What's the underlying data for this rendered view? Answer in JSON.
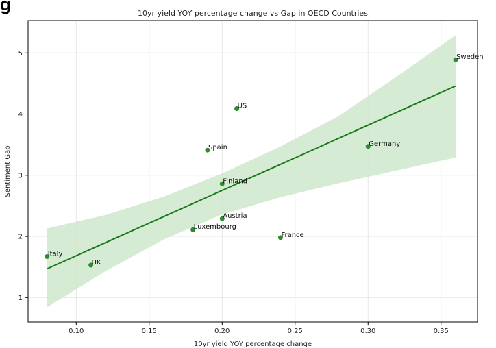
{
  "page": {
    "title_fragment": "g"
  },
  "chart_data": {
    "type": "scatter",
    "title": "10yr yield YOY percentage change vs Gap in OECD Countries",
    "xlabel": "10yr yield YOY percentage change",
    "ylabel": "Sentiment Gap",
    "xlim": [
      0.067,
      0.375
    ],
    "ylim": [
      0.6,
      5.53
    ],
    "xticks": [
      "0.10",
      "0.15",
      "0.20",
      "0.25",
      "0.30",
      "0.35"
    ],
    "yticks": [
      "1",
      "2",
      "3",
      "4",
      "5"
    ],
    "grid": true,
    "points": [
      {
        "label": "Italy",
        "x": 0.08,
        "y": 1.67
      },
      {
        "label": "UK",
        "x": 0.11,
        "y": 1.53
      },
      {
        "label": "Luxembourg",
        "x": 0.18,
        "y": 2.11
      },
      {
        "label": "Spain",
        "x": 0.19,
        "y": 3.41
      },
      {
        "label": "Finland",
        "x": 0.2,
        "y": 2.86
      },
      {
        "label": "Austria",
        "x": 0.2,
        "y": 2.29
      },
      {
        "label": "US",
        "x": 0.21,
        "y": 4.09
      },
      {
        "label": "France",
        "x": 0.24,
        "y": 1.98
      },
      {
        "label": "Germany",
        "x": 0.3,
        "y": 3.47
      },
      {
        "label": "Sweden",
        "x": 0.36,
        "y": 4.89
      }
    ],
    "regression": {
      "x": [
        0.08,
        0.36
      ],
      "y": [
        1.47,
        4.46
      ],
      "ci_x": [
        0.08,
        0.12,
        0.16,
        0.2,
        0.24,
        0.28,
        0.32,
        0.36
      ],
      "ci_lower": [
        0.84,
        1.43,
        1.95,
        2.36,
        2.64,
        2.87,
        3.08,
        3.29
      ],
      "ci_upper": [
        2.13,
        2.35,
        2.65,
        3.03,
        3.47,
        3.97,
        4.62,
        5.29
      ]
    },
    "colors": {
      "point": "#2e8b2e",
      "line": "#1a7a1a",
      "band": "#cfe8cb",
      "grid": "#e6e6e6",
      "axis": "#000000"
    }
  }
}
